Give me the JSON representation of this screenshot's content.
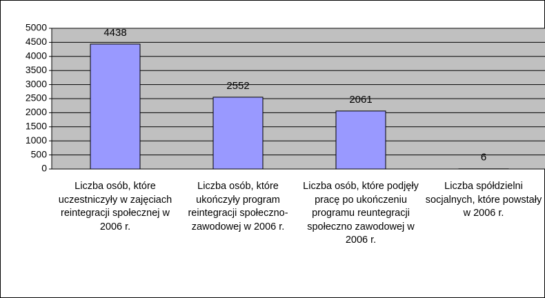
{
  "chart_data": {
    "type": "bar",
    "categories": [
      "Liczba osób, które uczestniczyły w zajęciach reintegracji społecznej w 2006 r.",
      "Liczba osób, które ukończyły program reintegracji społeczno-zawodowej w 2006 r.",
      "Liczba osób, które podjęły pracę po ukończeniu programu reuntegracji społeczno zawodowej w 2006 r.",
      "Liczba spółdzielni socjalnych, które powstały w 2006 r."
    ],
    "values": [
      4438,
      2552,
      2061,
      6
    ],
    "color": "#9999ff",
    "ylim": [
      0,
      5000
    ],
    "yticks": [
      0,
      500,
      1000,
      1500,
      2000,
      2500,
      3000,
      3500,
      4000,
      4500,
      5000
    ],
    "grid": true
  }
}
